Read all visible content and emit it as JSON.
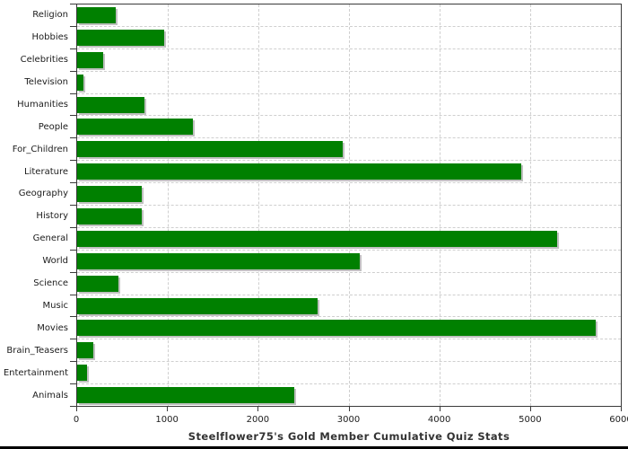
{
  "chart_data": {
    "type": "bar",
    "orientation": "horizontal",
    "title": "Steelflower75's Gold Member Cumulative Quiz Stats",
    "categories": [
      "Religion",
      "Hobbies",
      "Celebrities",
      "Television",
      "Humanities",
      "People",
      "For_Children",
      "Literature",
      "Geography",
      "History",
      "General",
      "World",
      "Science",
      "Music",
      "Movies",
      "Brain_Teasers",
      "Entertainment",
      "Animals"
    ],
    "values": [
      430,
      960,
      290,
      70,
      740,
      1280,
      2930,
      4900,
      710,
      710,
      5300,
      3120,
      460,
      2650,
      5720,
      180,
      110,
      2400
    ],
    "xlim": [
      0,
      6000
    ],
    "x_ticks": [
      0,
      1000,
      2000,
      3000,
      4000,
      5000,
      6000
    ],
    "grid": "dashed",
    "legend": "none",
    "bar_color": "#008000",
    "bar_shadow_color": "#c0c0c0",
    "grid_color": "#cfcfcf",
    "axis_color": "#3a3a3a",
    "text_color": "#1c1c1c",
    "title_color": "#333333"
  }
}
